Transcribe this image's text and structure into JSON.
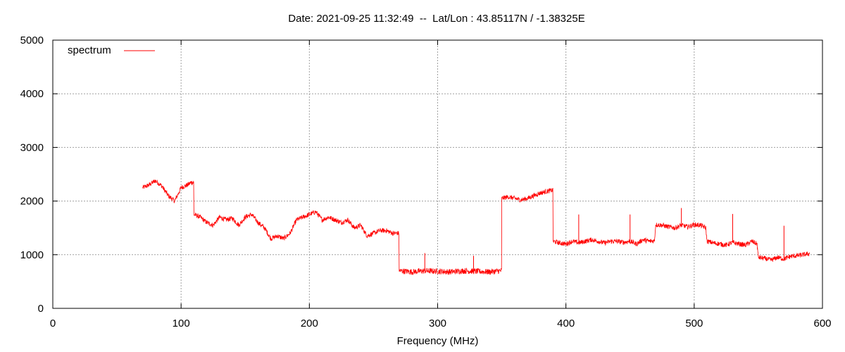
{
  "chart_data": {
    "type": "line",
    "title": "Date: 2021-09-25 11:32:49  --  Lat/Lon : 43.85117N / -1.38325E",
    "xlabel": "Frequency (MHz)",
    "ylabel": "",
    "xlim": [
      0,
      600
    ],
    "ylim": [
      0,
      5000
    ],
    "xticks": [
      0,
      100,
      200,
      300,
      400,
      500,
      600
    ],
    "yticks": [
      0,
      1000,
      2000,
      3000,
      4000,
      5000
    ],
    "grid": true,
    "legend_position": "top-left",
    "series": [
      {
        "name": "spectrum",
        "color": "#ff0000",
        "x": [
          70,
          75,
          80,
          85,
          90,
          95,
          100,
          105,
          108,
          110,
          115,
          120,
          125,
          130,
          135,
          140,
          145,
          150,
          155,
          160,
          165,
          170,
          175,
          180,
          185,
          190,
          195,
          200,
          205,
          210,
          215,
          220,
          225,
          230,
          235,
          240,
          245,
          250,
          255,
          260,
          265,
          269,
          270,
          280,
          290,
          300,
          310,
          320,
          330,
          340,
          349,
          350,
          355,
          360,
          365,
          370,
          375,
          380,
          385,
          389,
          390,
          395,
          400,
          405,
          410,
          415,
          420,
          425,
          430,
          435,
          440,
          445,
          450,
          455,
          460,
          465,
          469,
          470,
          475,
          480,
          485,
          490,
          495,
          500,
          505,
          509,
          510,
          515,
          520,
          525,
          530,
          535,
          540,
          545,
          549,
          550,
          555,
          560,
          565,
          570,
          575,
          580,
          585,
          590
        ],
        "y": [
          2250,
          2300,
          2380,
          2280,
          2100,
          2000,
          2250,
          2300,
          2350,
          1750,
          1700,
          1600,
          1550,
          1700,
          1650,
          1680,
          1550,
          1700,
          1750,
          1600,
          1500,
          1300,
          1350,
          1300,
          1400,
          1650,
          1700,
          1750,
          1800,
          1650,
          1700,
          1650,
          1600,
          1650,
          1500,
          1550,
          1350,
          1400,
          1450,
          1450,
          1400,
          1400,
          700,
          680,
          700,
          690,
          680,
          700,
          690,
          680,
          700,
          2050,
          2080,
          2050,
          2020,
          2050,
          2100,
          2150,
          2180,
          2200,
          1250,
          1220,
          1200,
          1250,
          1220,
          1250,
          1280,
          1250,
          1220,
          1250,
          1250,
          1230,
          1250,
          1200,
          1280,
          1250,
          1260,
          1560,
          1550,
          1520,
          1500,
          1550,
          1520,
          1560,
          1550,
          1500,
          1250,
          1220,
          1200,
          1180,
          1230,
          1200,
          1180,
          1250,
          1200,
          950,
          930,
          900,
          950,
          920,
          970,
          980,
          1000,
          1020
        ]
      }
    ],
    "spikes": [
      {
        "x": 290,
        "y": 1030
      },
      {
        "x": 328,
        "y": 980
      },
      {
        "x": 410,
        "y": 1750
      },
      {
        "x": 450,
        "y": 1750
      },
      {
        "x": 490,
        "y": 1870
      },
      {
        "x": 530,
        "y": 1760
      },
      {
        "x": 570,
        "y": 1540
      }
    ]
  }
}
